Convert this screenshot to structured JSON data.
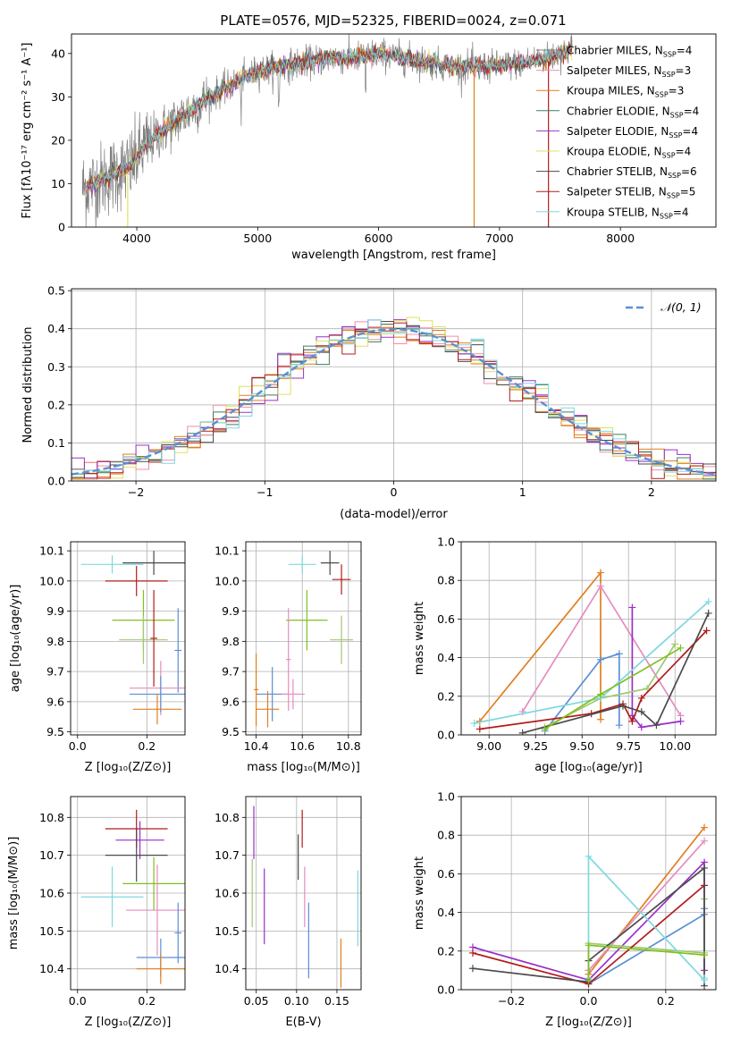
{
  "figure": {
    "title": "PLATE=0576, MJD=52325, FIBERID=0024, z=0.071"
  },
  "colors": {
    "spec_bg": "#7f7f7f",
    "hist_gauss": "#5b8fd6",
    "models": [
      "#7f7f7f",
      "#f08fa6",
      "#e07f20",
      "#3f7f5f",
      "#9b30c8",
      "#e0e060",
      "#4a4a4a",
      "#b31b1b",
      "#7fd8e0"
    ],
    "w": [
      "#e07f20",
      "#e48cc0",
      "#5b8fd6",
      "#9b30c8",
      "#a0c870",
      "#b31b1b",
      "#4a4a4a",
      "#7fd8e0",
      "#7fc020"
    ]
  },
  "chart_data": [
    {
      "id": "spectrum",
      "type": "line",
      "title": "",
      "xlabel": "wavelength [Angstrom, rest frame]",
      "ylabel_html": "Flux [fλ10⁻¹⁷ erg cm⁻² s⁻¹ A⁻¹]",
      "ylabel": "Flux [f_λ10^{-17} erg cm^{-2} s^{-1} A^{-1}]",
      "xlim": [
        3460,
        8790
      ],
      "ylim": [
        0,
        44.5
      ],
      "xticks": [
        4000,
        5000,
        6000,
        7000,
        8000
      ],
      "yticks": [
        0,
        10,
        20,
        30,
        40
      ],
      "legend": [
        {
          "label": "Chabrier MILES, N",
          "sub": "SSP",
          "suf": "=4"
        },
        {
          "label": "Salpeter MILES, N",
          "sub": "SSP",
          "suf": "=3"
        },
        {
          "label": "Kroupa MILES, N",
          "sub": "SSP",
          "suf": "=3"
        },
        {
          "label": "Chabrier ELODIE, N",
          "sub": "SSP",
          "suf": "=4"
        },
        {
          "label": "Salpeter ELODIE, N",
          "sub": "SSP",
          "suf": "=4"
        },
        {
          "label": "Kroupa ELODIE, N",
          "sub": "SSP",
          "suf": "=4"
        },
        {
          "label": "Chabrier STELIB, N",
          "sub": "SSP",
          "suf": "=6"
        },
        {
          "label": "Salpeter STELIB, N",
          "sub": "SSP",
          "suf": "=5"
        },
        {
          "label": "Kroupa STELIB, N",
          "sub": "SSP",
          "suf": "=4"
        }
      ],
      "continuum": {
        "x": [
          3550,
          3650,
          3800,
          3950,
          4050,
          4200,
          4400,
          4600,
          4800,
          5000,
          5200,
          5400,
          5600,
          5800,
          6000,
          6200,
          6400,
          6600,
          6800,
          7000,
          7200,
          7400,
          7600
        ],
        "y": [
          9,
          10,
          12,
          14,
          18,
          22,
          26,
          30,
          33,
          36,
          37,
          38,
          39,
          39,
          40,
          39,
          38,
          37,
          37,
          37,
          38,
          39,
          41
        ]
      }
    },
    {
      "id": "residuals",
      "type": "histogram",
      "xlabel": "(data-model)/error",
      "ylabel": "Normed distribution",
      "xlim": [
        -2.5,
        2.5
      ],
      "ylim": [
        0,
        0.505
      ],
      "xticks": [
        -2,
        -1,
        0,
        1,
        2
      ],
      "yticks": [
        0.0,
        0.1,
        0.2,
        0.3,
        0.4,
        0.5
      ],
      "legend": "𝒩(0, 1)",
      "bin_width": 0.1
    },
    {
      "id": "age_vs_z",
      "type": "errorbar",
      "xlabel": "Z [log₁₀(Z/Z⊙)]",
      "ylabel": "age  [log₁₀(age/yr)]",
      "xlim": [
        -0.02,
        0.31
      ],
      "ylim": [
        9.49,
        10.13
      ],
      "xticks": [
        0.0,
        0.2
      ],
      "yticks": [
        9.5,
        9.6,
        9.7,
        9.8,
        9.9,
        10.0,
        10.1
      ],
      "points": [
        {
          "x": 0.22,
          "y": 10.06,
          "xerr": 0.09,
          "yerr": 0.04,
          "c": 6
        },
        {
          "x": 0.1,
          "y": 10.055,
          "xerr": 0.09,
          "yerr": 0.03,
          "c": 7
        },
        {
          "x": 0.17,
          "y": 10.0,
          "xerr": 0.09,
          "yerr": 0.05,
          "c": 5
        },
        {
          "x": 0.19,
          "y": 9.87,
          "xerr": 0.09,
          "yerr": 0.1,
          "c": 8
        },
        {
          "x": 0.19,
          "y": 9.805,
          "xerr": 0.07,
          "yerr": 0.08,
          "c": 4
        },
        {
          "x": 0.22,
          "y": 9.81,
          "xerr": 0.01,
          "yerr": 0.16,
          "c": 5
        },
        {
          "x": 0.29,
          "y": 9.77,
          "xerr": 0.01,
          "yerr": 0.14,
          "c": 2
        },
        {
          "x": 0.24,
          "y": 9.645,
          "xerr": 0.09,
          "yerr": 0.09,
          "c": 1
        },
        {
          "x": 0.24,
          "y": 9.625,
          "xerr": 0.09,
          "yerr": 0.06,
          "c": 2
        },
        {
          "x": 0.23,
          "y": 9.575,
          "xerr": 0.07,
          "yerr": 0.05,
          "c": 0
        }
      ]
    },
    {
      "id": "age_vs_mass",
      "type": "errorbar",
      "xlabel": "mass [log₁₀(M/M⊙)]",
      "ylabel": "",
      "xlim": [
        10.355,
        10.855
      ],
      "ylim": [
        9.49,
        10.13
      ],
      "xticks": [
        10.4,
        10.6,
        10.8
      ],
      "yticks": [
        9.5,
        9.6,
        9.7,
        9.8,
        9.9,
        10.0,
        10.1
      ],
      "points": [
        {
          "x": 10.72,
          "y": 10.06,
          "xerr": 0.04,
          "yerr": 0.04,
          "c": 6
        },
        {
          "x": 10.6,
          "y": 10.055,
          "xerr": 0.06,
          "yerr": 0.03,
          "c": 7
        },
        {
          "x": 10.77,
          "y": 10.005,
          "xerr": 0.04,
          "yerr": 0.05,
          "c": 5
        },
        {
          "x": 10.62,
          "y": 9.87,
          "xerr": 0.09,
          "yerr": 0.1,
          "c": 8
        },
        {
          "x": 10.77,
          "y": 9.805,
          "xerr": 0.05,
          "yerr": 0.08,
          "c": 4
        },
        {
          "x": 10.54,
          "y": 9.74,
          "xerr": 0.01,
          "yerr": 0.17,
          "c": 1
        },
        {
          "x": 10.47,
          "y": 9.625,
          "xerr": 0.07,
          "yerr": 0.09,
          "c": 2
        },
        {
          "x": 10.45,
          "y": 9.575,
          "xerr": 0.05,
          "yerr": 0.06,
          "c": 0
        },
        {
          "x": 10.56,
          "y": 9.625,
          "xerr": 0.05,
          "yerr": 0.05,
          "c": 1
        },
        {
          "x": 10.4,
          "y": 9.64,
          "xerr": 0.01,
          "yerr": 0.12,
          "c": 0
        }
      ]
    },
    {
      "id": "weight_vs_age",
      "type": "line",
      "xlabel": "age  [log₁₀(age/yr)]",
      "ylabel": "mass weight",
      "xlim": [
        8.85,
        10.22
      ],
      "ylim": [
        0,
        1.0
      ],
      "xticks": [
        9.0,
        9.25,
        9.5,
        9.75,
        10.0
      ],
      "xticklabels": [
        "9.00",
        "9.25",
        "9.50",
        "9.75",
        "10.00"
      ],
      "yticks": [
        0.0,
        0.2,
        0.4,
        0.6,
        0.8,
        1.0
      ],
      "series": [
        {
          "c": 0,
          "x": [
            8.95,
            9.6,
            9.6
          ],
          "y": [
            0.07,
            0.84,
            0.08
          ]
        },
        {
          "c": 1,
          "x": [
            9.18,
            9.6,
            10.03
          ],
          "y": [
            0.12,
            0.77,
            0.1
          ]
        },
        {
          "c": 2,
          "x": [
            9.3,
            9.6,
            9.7,
            9.7
          ],
          "y": [
            0.02,
            0.39,
            0.42,
            0.05
          ]
        },
        {
          "c": 3,
          "x": [
            9.77,
            9.77,
            9.82,
            10.03
          ],
          "y": [
            0.66,
            0.1,
            0.04,
            0.07
          ]
        },
        {
          "c": 4,
          "x": [
            9.3,
            9.6,
            9.85,
            10.0
          ],
          "y": [
            0.04,
            0.19,
            0.24,
            0.47
          ]
        },
        {
          "c": 5,
          "x": [
            8.95,
            9.55,
            9.72,
            9.77,
            9.82,
            10.17
          ],
          "y": [
            0.03,
            0.11,
            0.16,
            0.07,
            0.19,
            0.54
          ]
        },
        {
          "c": 6,
          "x": [
            9.18,
            9.72,
            9.82,
            9.9,
            10.18
          ],
          "y": [
            0.01,
            0.15,
            0.12,
            0.05,
            0.63
          ]
        },
        {
          "c": 7,
          "x": [
            8.92,
            9.6,
            10.18
          ],
          "y": [
            0.06,
            0.19,
            0.69
          ]
        },
        {
          "c": 8,
          "x": [
            9.3,
            9.6,
            10.03
          ],
          "y": [
            0.03,
            0.21,
            0.45
          ]
        }
      ]
    },
    {
      "id": "mass_vs_z",
      "type": "errorbar",
      "xlabel": "Z [log₁₀(Z/Z⊙)]",
      "ylabel": "mass [log₁₀(M/M⊙)]",
      "xlim": [
        -0.02,
        0.31
      ],
      "ylim": [
        10.345,
        10.855
      ],
      "xticks": [
        0.0,
        0.2
      ],
      "yticks": [
        10.4,
        10.5,
        10.6,
        10.7,
        10.8
      ],
      "points": [
        {
          "x": 0.17,
          "y": 10.77,
          "xerr": 0.09,
          "yerr": 0.05,
          "c": 5
        },
        {
          "x": 0.18,
          "y": 10.74,
          "xerr": 0.07,
          "yerr": 0.05,
          "c": 3
        },
        {
          "x": 0.17,
          "y": 10.7,
          "xerr": 0.09,
          "yerr": 0.07,
          "c": 6
        },
        {
          "x": 0.22,
          "y": 10.625,
          "xerr": 0.09,
          "yerr": 0.07,
          "c": 8
        },
        {
          "x": 0.1,
          "y": 10.59,
          "xerr": 0.09,
          "yerr": 0.08,
          "c": 7
        },
        {
          "x": 0.23,
          "y": 10.555,
          "xerr": 0.09,
          "yerr": 0.12,
          "c": 1
        },
        {
          "x": 0.29,
          "y": 10.495,
          "xerr": 0.01,
          "yerr": 0.08,
          "c": 2
        },
        {
          "x": 0.24,
          "y": 10.43,
          "xerr": 0.07,
          "yerr": 0.05,
          "c": 2
        },
        {
          "x": 0.24,
          "y": 10.4,
          "xerr": 0.07,
          "yerr": 0.04,
          "c": 0
        }
      ]
    },
    {
      "id": "mass_vs_ebv",
      "type": "errorbar",
      "xlabel": "E(B-V)",
      "ylabel": "",
      "xlim": [
        0.037,
        0.18
      ],
      "ylim": [
        10.345,
        10.855
      ],
      "xticks": [
        0.05,
        0.1,
        0.15
      ],
      "yticks": [
        10.4,
        10.5,
        10.6,
        10.7,
        10.8
      ],
      "points": [
        {
          "x": 0.047,
          "y": 10.76,
          "xerr": 0,
          "yerr": 0.07,
          "c": 3
        },
        {
          "x": 0.107,
          "y": 10.77,
          "xerr": 0,
          "yerr": 0.05,
          "c": 5
        },
        {
          "x": 0.102,
          "y": 10.695,
          "xerr": 0,
          "yerr": 0.06,
          "c": 6
        },
        {
          "x": 0.045,
          "y": 10.6,
          "xerr": 0,
          "yerr": 0.09,
          "c": 4
        },
        {
          "x": 0.06,
          "y": 10.565,
          "xerr": 0,
          "yerr": 0.1,
          "c": 3
        },
        {
          "x": 0.11,
          "y": 10.59,
          "xerr": 0,
          "yerr": 0.08,
          "c": 1
        },
        {
          "x": 0.176,
          "y": 10.56,
          "xerr": 0,
          "yerr": 0.1,
          "c": 7
        },
        {
          "x": 0.115,
          "y": 10.475,
          "xerr": 0,
          "yerr": 0.1,
          "c": 2
        },
        {
          "x": 0.155,
          "y": 10.415,
          "xerr": 0,
          "yerr": 0.065,
          "c": 0
        }
      ]
    },
    {
      "id": "weight_vs_z",
      "type": "line",
      "xlabel": "Z [log₁₀(Z/Z⊙)]",
      "ylabel": "mass weight",
      "xlim": [
        -0.33,
        0.33
      ],
      "ylim": [
        0,
        1.0
      ],
      "xticks": [
        -0.2,
        0.0,
        0.2
      ],
      "xticklabels": [
        "−0.2",
        "0.0",
        "0.2"
      ],
      "yticks": [
        0.0,
        0.2,
        0.4,
        0.6,
        0.8,
        1.0
      ],
      "series": [
        {
          "c": 0,
          "x": [
            0.0,
            0.3
          ],
          "y": [
            0.08,
            0.84
          ]
        },
        {
          "c": 1,
          "x": [
            0.0,
            0.3
          ],
          "y": [
            0.1,
            0.77
          ]
        },
        {
          "c": 2,
          "x": [
            0.0,
            0.3,
            0.3
          ],
          "y": [
            0.03,
            0.39,
            0.42
          ]
        },
        {
          "c": 3,
          "x": [
            -0.3,
            0.0,
            0.3,
            0.3
          ],
          "y": [
            0.22,
            0.05,
            0.66,
            0.1
          ]
        },
        {
          "c": 4,
          "x": [
            0.0,
            0.0,
            0.3,
            0.3
          ],
          "y": [
            0.03,
            0.24,
            0.19,
            0.47
          ]
        },
        {
          "c": 5,
          "x": [
            -0.3,
            0.0,
            0.3
          ],
          "y": [
            0.19,
            0.03,
            0.54
          ]
        },
        {
          "c": 6,
          "x": [
            -0.3,
            0.0,
            0.0,
            0.3,
            0.3
          ],
          "y": [
            0.11,
            0.04,
            0.15,
            0.63,
            0.02
          ]
        },
        {
          "c": 7,
          "x": [
            0.0,
            0.0,
            0.3,
            0.3
          ],
          "y": [
            0.06,
            0.69,
            0.05,
            0.06
          ]
        },
        {
          "c": 8,
          "x": [
            0.0,
            0.0,
            0.3
          ],
          "y": [
            0.05,
            0.23,
            0.18
          ]
        }
      ]
    }
  ]
}
